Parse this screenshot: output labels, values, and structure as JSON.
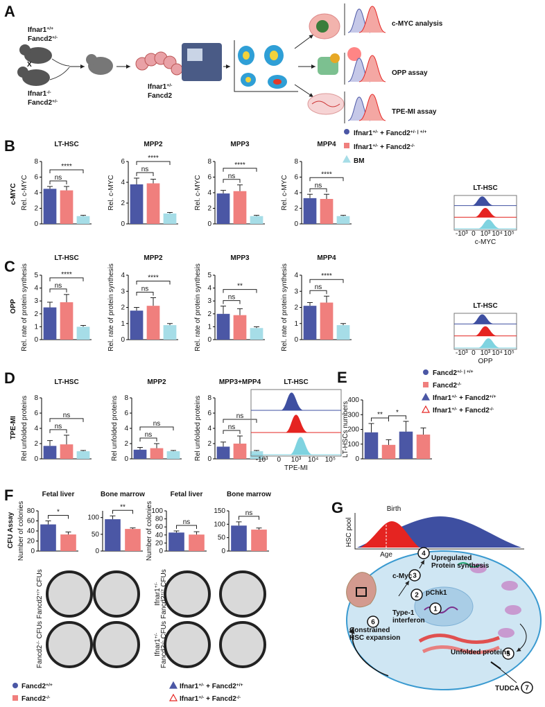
{
  "figure": {
    "A": {
      "letter": "A",
      "parent_top": [
        [
          {
            "text": "Ifnar1"
          },
          {
            "sup": "+/+"
          }
        ],
        [
          {
            "text": "Fancd2"
          },
          {
            "sup": "+/-"
          }
        ]
      ],
      "cross": "X",
      "parent_bottom": [
        [
          {
            "text": "Ifnar1"
          },
          {
            "sup": "-/-"
          }
        ],
        [
          {
            "text": "Fancd2"
          },
          {
            "sup": "+/-"
          }
        ]
      ],
      "embryo": [
        [
          {
            "text": "Ifnar1"
          },
          {
            "sup": "+/-"
          }
        ],
        [
          {
            "text": "Fancd2"
          }
        ]
      ],
      "assays": [
        "c-MYC analysis",
        "OPP assay",
        "TPE-MI assay"
      ]
    },
    "B": {
      "letter": "B",
      "panel_ylabel": "c-MYC",
      "colors": [
        "#4b57a5",
        "#f07f7d",
        "#a6dde7"
      ],
      "legend": [
        [
          {
            "text": "Ifnar1"
          },
          {
            "sup": "+/-"
          },
          {
            "text": " + Fancd2"
          },
          {
            "sup": "+/- | +/+"
          }
        ],
        [
          {
            "text": "Ifnar1"
          },
          {
            "sup": "+/-"
          },
          {
            "text": " + Fancd2"
          },
          {
            "sup": "-/-"
          }
        ],
        [
          {
            "text": "BM"
          }
        ]
      ],
      "charts": [
        {
          "title": "LT-HSC",
          "ylabel": "Rel. c-MYC",
          "ylim": [
            0,
            8
          ],
          "yticks": [
            0,
            2,
            4,
            6,
            8
          ],
          "values": [
            4.5,
            4.3,
            1.0
          ],
          "errors": [
            0.3,
            0.5,
            0.1
          ],
          "significance": [
            "ns",
            "****"
          ]
        },
        {
          "title": "MPP2",
          "ylabel": "Rel. c-MYC",
          "ylim": [
            0,
            6
          ],
          "yticks": [
            0,
            2,
            4,
            6
          ],
          "values": [
            3.8,
            3.9,
            1.0
          ],
          "errors": [
            0.6,
            0.4,
            0.1
          ],
          "significance": [
            "ns",
            "****"
          ]
        },
        {
          "title": "MPP3",
          "ylabel": "Rel. c-MYC",
          "ylim": [
            0,
            8
          ],
          "yticks": [
            0,
            2,
            4,
            6,
            8
          ],
          "values": [
            3.9,
            4.2,
            1.0
          ],
          "errors": [
            0.4,
            0.8,
            0.1
          ],
          "significance": [
            "ns",
            "****"
          ]
        },
        {
          "title": "MPP4",
          "ylabel": "Rel. c-MYC",
          "ylim": [
            0,
            8
          ],
          "yticks": [
            0,
            2,
            4,
            6,
            8
          ],
          "values": [
            3.3,
            3.2,
            1.0
          ],
          "errors": [
            0.5,
            0.6,
            0.1
          ],
          "significance": [
            "ns",
            "****"
          ]
        }
      ],
      "histogram": {
        "title": "LT-HSC",
        "xlabel": "c-MYC",
        "xticks": [
          "-10³",
          "0",
          "10³",
          "10⁴",
          "10⁵"
        ]
      }
    },
    "C": {
      "letter": "C",
      "panel_ylabel": "OPP",
      "charts": [
        {
          "title": "LT-HSC",
          "ylabel": "Rel. rate of protein synthesis",
          "ylim": [
            0,
            5
          ],
          "yticks": [
            0,
            1,
            2,
            3,
            4,
            5
          ],
          "values": [
            2.5,
            2.9,
            1.0
          ],
          "errors": [
            0.4,
            0.6,
            0.1
          ],
          "significance": [
            "ns",
            "****"
          ]
        },
        {
          "title": "MPP2",
          "ylabel": "Rel. rate of protein synthesis",
          "ylim": [
            0,
            4
          ],
          "yticks": [
            0,
            1,
            2,
            3,
            4
          ],
          "values": [
            1.8,
            2.1,
            0.9
          ],
          "errors": [
            0.2,
            0.5,
            0.1
          ],
          "significance": [
            "ns",
            "****"
          ]
        },
        {
          "title": "MPP3",
          "ylabel": "Rel. rate of protein synthesis",
          "ylim": [
            0,
            5
          ],
          "yticks": [
            0,
            1,
            2,
            3,
            4,
            5
          ],
          "values": [
            2.0,
            1.9,
            0.9
          ],
          "errors": [
            0.6,
            0.5,
            0.1
          ],
          "significance": [
            "ns",
            "**"
          ]
        },
        {
          "title": "MPP4",
          "ylabel": "Rel. rate of protein synthesis",
          "ylim": [
            0,
            4
          ],
          "yticks": [
            0,
            1,
            2,
            3,
            4
          ],
          "values": [
            2.1,
            2.3,
            0.9
          ],
          "errors": [
            0.2,
            0.4,
            0.1
          ],
          "significance": [
            "ns",
            "****"
          ]
        }
      ],
      "histogram": {
        "title": "LT-HSC",
        "xlabel": "OPP",
        "xticks": [
          "-10³",
          "0",
          "10³",
          "10⁴",
          "10⁵"
        ]
      }
    },
    "D": {
      "letter": "D",
      "panel_ylabel": "TPE-MI",
      "charts": [
        {
          "title": "LT-HSC",
          "ylabel": "Rel unfolded proteins",
          "ylim": [
            0,
            8
          ],
          "yticks": [
            0,
            2,
            4,
            6,
            8
          ],
          "values": [
            1.7,
            1.9,
            1.0
          ],
          "errors": [
            0.7,
            1.2,
            0.1
          ],
          "significance": [
            "ns",
            "ns"
          ]
        },
        {
          "title": "MPP2",
          "ylabel": "Rel unfolded proteins",
          "ylim": [
            0,
            8
          ],
          "yticks": [
            0,
            2,
            4,
            6,
            8
          ],
          "values": [
            1.2,
            1.4,
            1.0
          ],
          "errors": [
            0.3,
            0.6,
            0.1
          ],
          "significance": [
            "ns",
            "ns"
          ]
        },
        {
          "title": "MPP3+MPP4",
          "ylabel": "Rel unfolded proteins",
          "ylim": [
            0,
            8
          ],
          "yticks": [
            0,
            2,
            4,
            6,
            8
          ],
          "values": [
            1.6,
            2.0,
            1.0
          ],
          "errors": [
            0.6,
            1.0,
            0.1
          ],
          "significance": [
            "ns",
            "ns"
          ]
        }
      ],
      "histogram": {
        "title": "LT-HSC",
        "xlabel": "TPE-MI",
        "xticks": [
          "-10³",
          "0",
          "10³",
          "10⁴",
          "10⁵"
        ]
      }
    },
    "E": {
      "letter": "E",
      "colors": [
        "#4b57a5",
        "#f07f7d",
        "#4b57a5",
        "#f07f7d"
      ],
      "legend": [
        [
          {
            "text": "Fancd2"
          },
          {
            "sup": "+/- | +/+"
          }
        ],
        [
          {
            "text": "Fancd2"
          },
          {
            "sup": "-/-"
          }
        ],
        [
          {
            "text": "Ifnar1"
          },
          {
            "sup": "+/-"
          },
          {
            "text": " + Fancd2"
          },
          {
            "sup": "+/+"
          }
        ],
        [
          {
            "text": "Ifnar1"
          },
          {
            "sup": "+/-"
          },
          {
            "text": " + Fancd2"
          },
          {
            "sup": "-/-"
          }
        ]
      ],
      "chart": {
        "ylabel": "LT-HSCs numbers",
        "ylim": [
          0,
          400
        ],
        "yticks": [
          0,
          100,
          200,
          300,
          400
        ],
        "values": [
          180,
          95,
          185,
          165
        ],
        "errors": [
          60,
          35,
          70,
          45
        ],
        "significance": [
          "**",
          "*"
        ]
      }
    },
    "F": {
      "letter": "F",
      "panel_ylabel": "CFU Assay",
      "colors": [
        "#4b57a5",
        "#f07f7d"
      ],
      "charts": [
        {
          "title": "Fetal liver",
          "ylabel": "Number of colonies",
          "ylim": [
            0,
            80
          ],
          "yticks": [
            0,
            20,
            40,
            60,
            80
          ],
          "values": [
            53,
            33
          ],
          "errors": [
            7,
            5
          ],
          "significance": [
            "*"
          ]
        },
        {
          "title": "Bone marrow",
          "ylim": [
            0,
            120
          ],
          "yticks": [
            0,
            50,
            100
          ],
          "values": [
            95,
            66
          ],
          "errors": [
            10,
            3
          ],
          "significance": [
            "**"
          ]
        },
        {
          "title": "Fetal liver",
          "ylabel": "Number of colonies",
          "ylim": [
            0,
            100
          ],
          "yticks": [
            0,
            20,
            40,
            60,
            80,
            100
          ],
          "values": [
            46,
            41
          ],
          "errors": [
            4,
            7
          ],
          "significance": [
            "ns"
          ]
        },
        {
          "title": "Bone marrow",
          "ylim": [
            0,
            150
          ],
          "yticks": [
            0,
            50,
            100,
            150
          ],
          "values": [
            95,
            80
          ],
          "errors": [
            14,
            6
          ],
          "significance": [
            "ns"
          ]
        }
      ],
      "plate_labels": [
        [
          [
            {
              "text": "Fancd2"
            },
            {
              "sup": "+/+"
            },
            {
              "text": " CFUs"
            }
          ]
        ],
        [
          [
            {
              "text": "Fancd2"
            },
            {
              "sup": "-/-"
            },
            {
              "text": " CFUs"
            }
          ]
        ],
        [
          [
            {
              "text": "Ifnar1"
            },
            {
              "sup": "+/-"
            }
          ],
          [
            {
              "text": "Fancd2"
            },
            {
              "sup": "+/+"
            },
            {
              "text": " CFUs"
            }
          ]
        ],
        [
          [
            {
              "text": "Ifnar1"
            },
            {
              "sup": "+/-"
            }
          ],
          [
            {
              "text": "Fancd2"
            },
            {
              "sup": "-/-"
            },
            {
              "text": " CFUs"
            }
          ]
        ]
      ],
      "legend": [
        [
          {
            "text": "Fancd2"
          },
          {
            "sup": "+/+"
          }
        ],
        [
          {
            "text": "Fancd2"
          },
          {
            "sup": "-/-"
          }
        ],
        [
          {
            "text": "Ifnar1"
          },
          {
            "sup": "+/-"
          },
          {
            "text": " + Fancd2"
          },
          {
            "sup": "+/+"
          }
        ],
        [
          {
            "text": "Ifnar1"
          },
          {
            "sup": "+/-"
          },
          {
            "text": " + Fancd2"
          },
          {
            "sup": "-/-"
          }
        ]
      ]
    },
    "G": {
      "letter": "G",
      "hsc_pool": "HSC pool",
      "birth": "Birth",
      "age": "Age",
      "steps": [
        {
          "number": 1,
          "label": [
            "pChk1"
          ]
        },
        {
          "number": 2,
          "label": [
            "Type-1",
            "interferon"
          ]
        },
        {
          "number": 3,
          "label": [
            "c-Myc"
          ]
        },
        {
          "number": 4,
          "label": [
            "Upregulated",
            "Protein synthesis"
          ]
        },
        {
          "number": 5,
          "label": [
            "Unfolded proteins"
          ]
        },
        {
          "number": 6,
          "label": [
            "Constrained",
            "HSC expansion"
          ]
        },
        {
          "number": 7,
          "label": [
            "TUDCA"
          ]
        }
      ]
    }
  }
}
